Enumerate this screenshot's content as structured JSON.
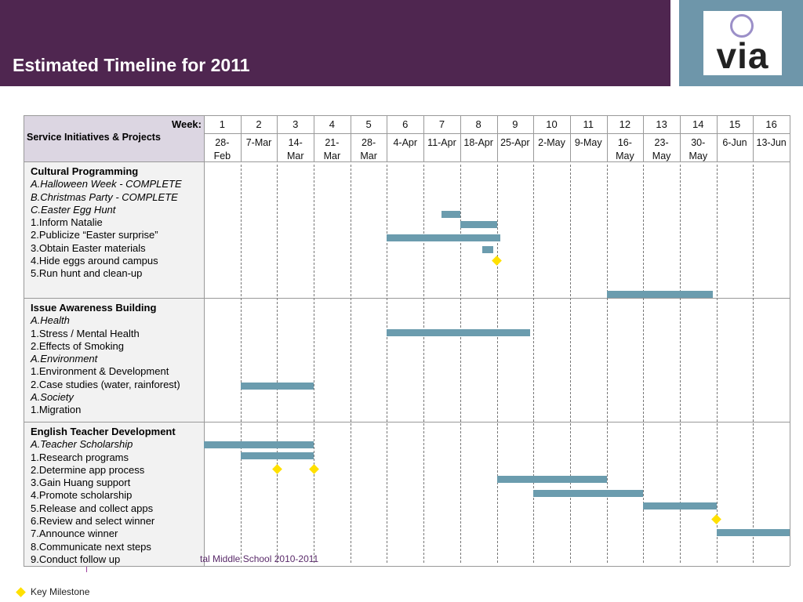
{
  "header": {
    "title": "Estimated Timeline for 2011",
    "logo": "via"
  },
  "table": {
    "week_label": "Week:",
    "first_column_label": "Service Initiatives & Projects",
    "weeks": [
      1,
      2,
      3,
      4,
      5,
      6,
      7,
      8,
      9,
      10,
      11,
      12,
      13,
      14,
      15,
      16
    ],
    "dates": [
      "28-Feb",
      "7-Mar",
      "14-Mar",
      "21-Mar",
      "28-Mar",
      "4-Apr",
      "11-Apr",
      "18-Apr",
      "25-Apr",
      "2-May",
      "9-May",
      "16-May",
      "23-May",
      "30-May",
      "6-Jun",
      "13-Jun"
    ],
    "sections": [
      {
        "title": "Cultural Programming",
        "items": [
          "A.Halloween Week - COMPLETE",
          "B.Christmas Party - COMPLETE",
          "C.Easter Egg Hunt",
          "1.Inform Natalie",
          "2.Publicize “Easter surprise”",
          "3.Obtain Easter materials",
          "4.Hide eggs around campus",
          "5.Run hunt and clean-up"
        ],
        "bars": [
          {
            "start": 6.5,
            "end": 7
          },
          {
            "start": 7,
            "end": 8
          },
          {
            "start": 5,
            "end": 8.1
          },
          {
            "start": 7.6,
            "end": 7.9
          },
          {
            "start": 11,
            "end": 13.9
          }
        ],
        "milestones": [
          8
        ]
      },
      {
        "title": "Issue Awareness Building",
        "items": [
          "A.Health",
          "1.Stress / Mental Health",
          "2.Effects of Smoking",
          "A.Environment",
          "1.Environment & Development",
          "2.Case studies (water, rainforest)",
          "A.Society",
          "1.Migration"
        ],
        "bars": [
          {
            "start": 5,
            "end": 8.9
          },
          {
            "start": 1,
            "end": 3
          }
        ],
        "milestones": []
      },
      {
        "title": "English Teacher Development",
        "items": [
          "A.Teacher Scholarship",
          "1.Research programs",
          "2.Determine app process",
          "3.Gain Huang support",
          "4.Promote scholarship",
          "5.Release and collect apps",
          "6.Review and select winner",
          "7.Announce winner",
          "8.Communicate next steps",
          "9.Conduct follow up"
        ],
        "bars": [
          {
            "start": 0,
            "end": 3
          },
          {
            "start": 1,
            "end": 3
          },
          {
            "start": 8,
            "end": 11
          },
          {
            "start": 9,
            "end": 12
          },
          {
            "start": 12,
            "end": 14
          },
          {
            "start": 14,
            "end": 16
          }
        ],
        "milestones": [
          2,
          3,
          14
        ]
      }
    ]
  },
  "footer": "tal Middle School  2010-2011",
  "legend": {
    "milestone": "Key Milestone"
  }
}
